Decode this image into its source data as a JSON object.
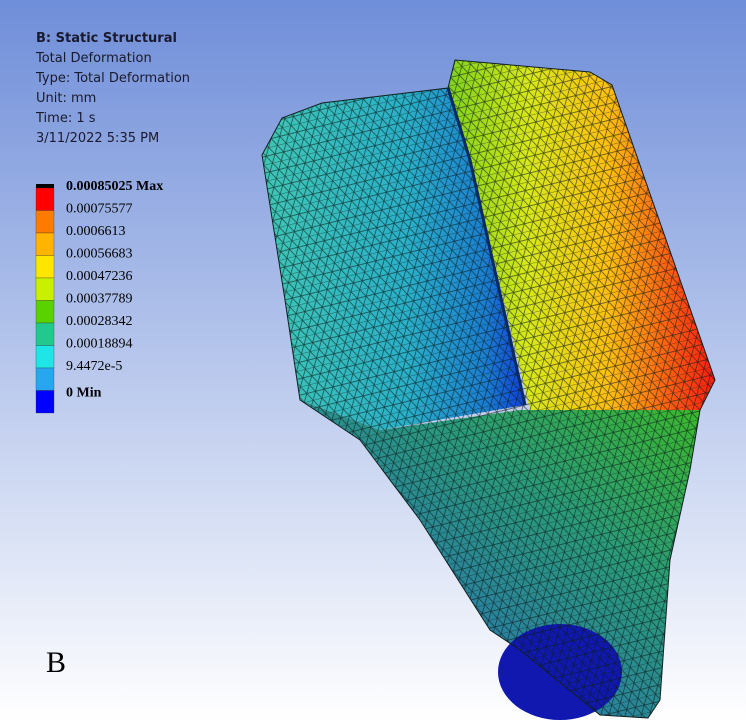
{
  "header": {
    "title": "B: Static Structural",
    "lines": [
      "Total Deformation",
      "Type: Total Deformation",
      "Unit: mm",
      "Time: 1 s",
      "3/11/2022 5:35 PM"
    ]
  },
  "legend": {
    "labels": [
      "0.00085025 Max",
      "0.00075577",
      "0.0006613",
      "0.00056683",
      "0.00047236",
      "0.00037789",
      "0.00028342",
      "0.00018894",
      "9.4472e-5",
      "0 Min"
    ],
    "colors": [
      "#ff0000",
      "#ff7a00",
      "#ffb400",
      "#ffe600",
      "#c8f000",
      "#5ad200",
      "#22c88c",
      "#1ee6e6",
      "#28a6f0",
      "#0000ff"
    ]
  },
  "view_label": "B"
}
